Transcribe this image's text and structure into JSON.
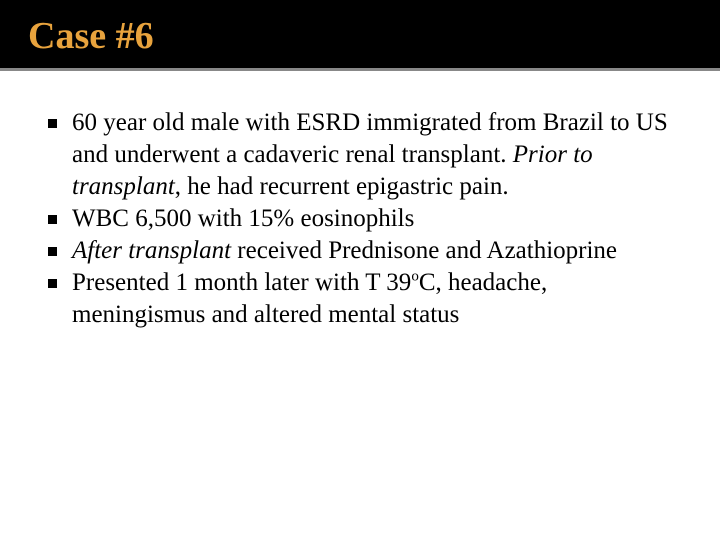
{
  "header": {
    "title": "Case #6",
    "title_color": "#e8a33d",
    "background_color": "#000000",
    "title_fontsize": 38,
    "underline_color": "#888888"
  },
  "content": {
    "background_color": "#ffffff",
    "text_color": "#000000",
    "bullet_color": "#000000",
    "fontsize": 25,
    "bullets": [
      {
        "segments": [
          {
            "text": "60 year old male with ESRD immigrated from Brazil to US and underwent a cadaveric renal transplant. ",
            "italic": false
          },
          {
            "text": "Prior to transplant",
            "italic": true
          },
          {
            "text": ", he had recurrent epigastric pain.",
            "italic": false
          }
        ]
      },
      {
        "segments": [
          {
            "text": "WBC 6,500 with 15% eosinophils",
            "italic": false
          }
        ]
      },
      {
        "segments": [
          {
            "text": "After transplant",
            "italic": true
          },
          {
            "text": " received Prednisone and Azathioprine",
            "italic": false
          }
        ]
      },
      {
        "segments": [
          {
            "text": "Presented 1 month later with T 39",
            "italic": false
          },
          {
            "text": "o",
            "italic": false,
            "sup": true
          },
          {
            "text": "C, headache, meningismus and altered mental status",
            "italic": false
          }
        ]
      }
    ]
  }
}
